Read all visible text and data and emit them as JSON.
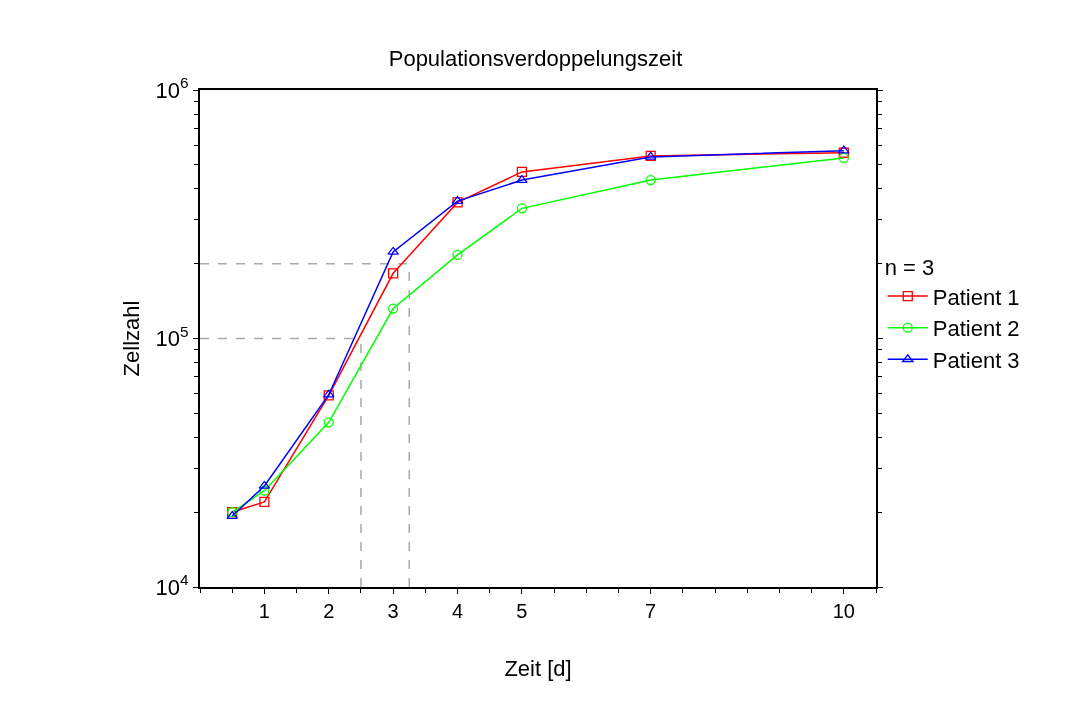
{
  "chart_data": {
    "type": "line",
    "title": "Populationsverdoppelungszeit",
    "xlabel": "Zeit [d]",
    "ylabel": "Zellzahl",
    "legend_title": "n = 3",
    "x": [
      0.5,
      1,
      2,
      3,
      4,
      5,
      7,
      10
    ],
    "series": [
      {
        "name": "Patient 1",
        "color": "#ff0000",
        "marker": "square",
        "values": [
          20000,
          22000,
          59000,
          183000,
          353000,
          468000,
          543000,
          559000
        ]
      },
      {
        "name": "Patient 2",
        "color": "#00ff00",
        "marker": "circle",
        "values": [
          20000,
          24400,
          46000,
          132000,
          217000,
          334000,
          434000,
          533000
        ]
      },
      {
        "name": "Patient 3",
        "color": "#0000ff",
        "marker": "triangle",
        "values": [
          19300,
          25500,
          59400,
          223000,
          357000,
          434000,
          538000,
          570000
        ]
      }
    ],
    "log": "y",
    "xlim": [
      0,
      10.5
    ],
    "xticks": [
      1,
      2,
      3,
      4,
      5,
      7,
      10
    ],
    "ylim": [
      10000,
      1000000
    ],
    "yticks": [
      {
        "value": 10000,
        "label": "10$^{4}$"
      },
      {
        "value": 100000,
        "label": "10$^{5}$"
      },
      {
        "value": 1000000,
        "label": "10$^{6}$"
      }
    ],
    "ref_lines": [
      {
        "axis": "y",
        "value": 100000,
        "color": "#aaaaaa",
        "line_style": "dashed"
      },
      {
        "axis": "y",
        "value": 200000,
        "color": "#aaaaaa",
        "line_style": "dashed"
      },
      {
        "axis": "x",
        "value": 2.5,
        "color": "#aaaaaa",
        "line_style": "dashed"
      },
      {
        "axis": "x",
        "value": 3.25,
        "color": "#aaaaaa",
        "line_style": "dashed"
      }
    ],
    "legend": "right"
  }
}
